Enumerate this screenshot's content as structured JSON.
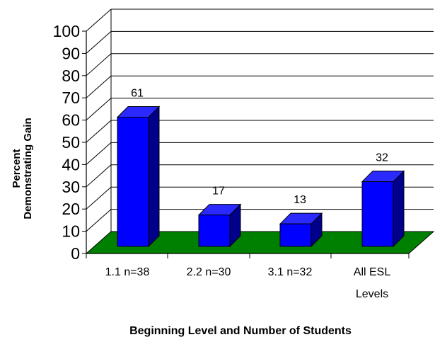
{
  "chart_data": {
    "type": "bar",
    "categories": [
      [
        "1.1 n=38"
      ],
      [
        "2.2 n=30"
      ],
      [
        "3.1 n=32"
      ],
      [
        "All ESL",
        "Levels"
      ]
    ],
    "values": [
      61,
      17,
      13,
      32
    ],
    "data_labels": [
      "61",
      "17",
      "13",
      "32"
    ],
    "ylim": [
      0,
      100
    ],
    "yticks": [
      "0",
      "10",
      "20",
      "30",
      "40",
      "50",
      "60",
      "70",
      "80",
      "90",
      "100"
    ],
    "ylabel": [
      "Percent",
      "Demonstrating Gain"
    ],
    "xlabel": "Beginning Level and Number of Students",
    "style": "3d",
    "grid": true,
    "legend": "none",
    "colors": {
      "bar_front": "#0000ff",
      "bar_top": "#2a2aff",
      "bar_side": "#00008b",
      "floor": "#008000",
      "gridline": "#000000"
    }
  }
}
